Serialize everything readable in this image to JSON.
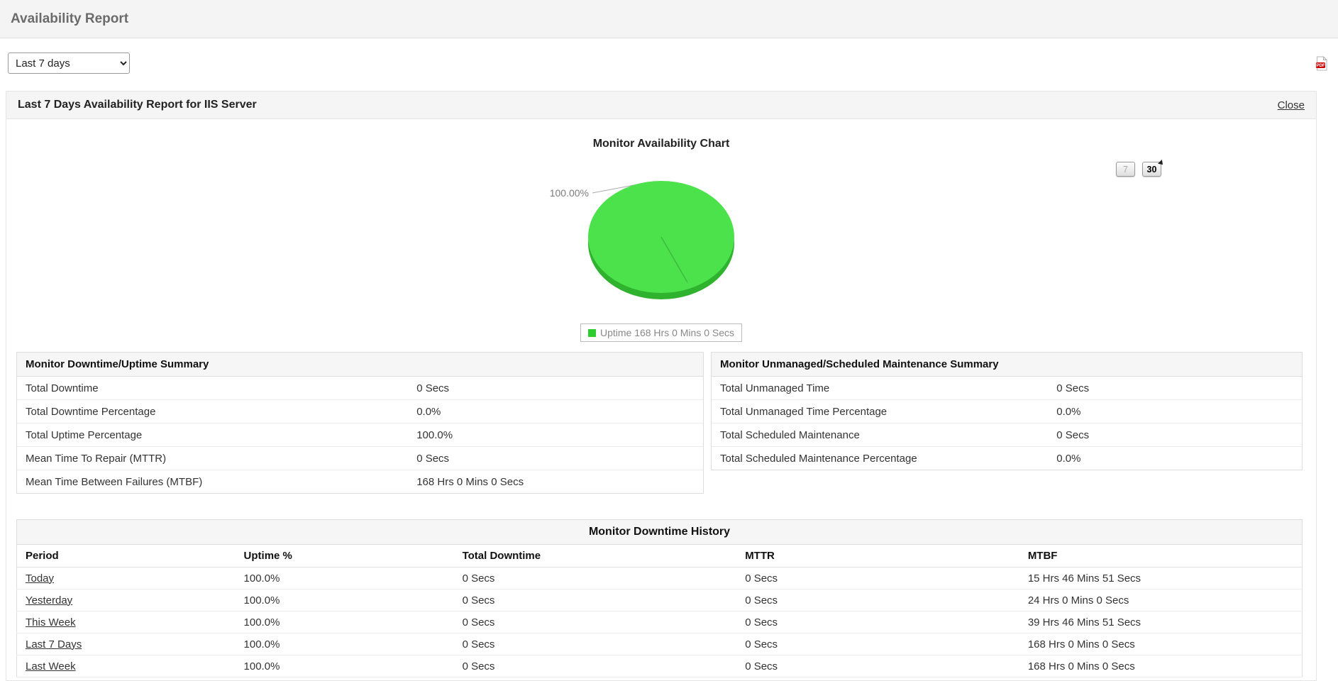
{
  "page": {
    "title": "Availability Report"
  },
  "toolbar": {
    "period_selector": {
      "value": "Last 7 days"
    },
    "pdf_icon": "pdf-export-icon"
  },
  "report_panel": {
    "title": "Last 7 Days Availability Report for IIS Server",
    "close_label": "Close",
    "chart": {
      "title": "Monitor Availability Chart",
      "range_buttons": [
        "7",
        "30"
      ],
      "slice_label": "100.00%",
      "legend_label": "Uptime 168 Hrs 0 Mins 0 Secs",
      "colors": {
        "uptime": "#4ce24c",
        "uptime_dark": "#2fb32f",
        "legend_swatch": "#2fcc2f"
      }
    },
    "downtime_summary": {
      "title": "Monitor Downtime/Uptime Summary",
      "rows": [
        {
          "label": "Total Downtime",
          "value": "0 Secs"
        },
        {
          "label": "Total Downtime Percentage",
          "value": "0.0%"
        },
        {
          "label": "Total Uptime Percentage",
          "value": "100.0%"
        },
        {
          "label": "Mean Time To Repair (MTTR)",
          "value": "0 Secs"
        },
        {
          "label": "Mean Time Between Failures (MTBF)",
          "value": "168 Hrs 0 Mins 0 Secs"
        }
      ]
    },
    "maintenance_summary": {
      "title": "Monitor Unmanaged/Scheduled Maintenance Summary",
      "rows": [
        {
          "label": "Total Unmanaged Time",
          "value": "0 Secs"
        },
        {
          "label": "Total Unmanaged Time Percentage",
          "value": "0.0%"
        },
        {
          "label": "Total Scheduled Maintenance",
          "value": "0 Secs"
        },
        {
          "label": "Total Scheduled Maintenance Percentage",
          "value": "0.0%"
        }
      ]
    },
    "downtime_history": {
      "title": "Monitor Downtime History",
      "columns": [
        "Period",
        "Uptime %",
        "Total Downtime",
        "MTTR",
        "MTBF"
      ],
      "rows": [
        [
          "Today",
          "100.0%",
          "0 Secs",
          "0 Secs",
          "15 Hrs 46 Mins 51 Secs"
        ],
        [
          "Yesterday",
          "100.0%",
          "0 Secs",
          "0 Secs",
          "24 Hrs 0 Mins 0 Secs"
        ],
        [
          "This Week",
          "100.0%",
          "0 Secs",
          "0 Secs",
          "39 Hrs 46 Mins 51 Secs"
        ],
        [
          "Last 7 Days",
          "100.0%",
          "0 Secs",
          "0 Secs",
          "168 Hrs 0 Mins 0 Secs"
        ],
        [
          "Last Week",
          "100.0%",
          "0 Secs",
          "0 Secs",
          "168 Hrs 0 Mins 0 Secs"
        ]
      ]
    }
  },
  "chart_data": {
    "type": "pie",
    "title": "Monitor Availability Chart",
    "slices": [
      {
        "label": "Uptime 168 Hrs 0 Mins 0 Secs",
        "value": 100.0,
        "color": "#4ce24c"
      }
    ],
    "data_labels": [
      "100.00%"
    ],
    "legend_position": "bottom"
  }
}
